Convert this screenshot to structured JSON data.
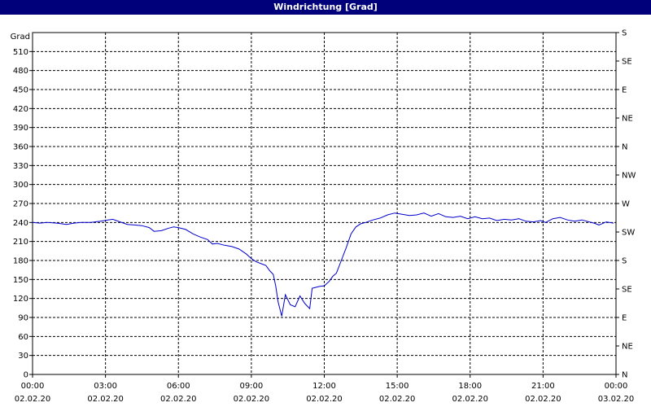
{
  "window": {
    "title": "Windrichtung [Grad]"
  },
  "chart_data": {
    "type": "line",
    "title": "Windrichtung [Grad]",
    "ylabel": "Grad",
    "xlabel": "",
    "ylim": [
      0,
      540
    ],
    "yticks": [
      0,
      30,
      60,
      90,
      120,
      150,
      180,
      210,
      240,
      270,
      300,
      330,
      360,
      390,
      420,
      450,
      480,
      510
    ],
    "y2_labels": [
      "N",
      "NE",
      "E",
      "SE",
      "S",
      "SW",
      "W",
      "NW",
      "N",
      "NE",
      "E",
      "SE",
      "S"
    ],
    "xlim": [
      0,
      24
    ],
    "xticks": [
      {
        "time": "00:00",
        "date": "02.02.20"
      },
      {
        "time": "03:00",
        "date": "02.02.20"
      },
      {
        "time": "06:00",
        "date": "02.02.20"
      },
      {
        "time": "09:00",
        "date": "02.02.20"
      },
      {
        "time": "12:00",
        "date": "02.02.20"
      },
      {
        "time": "15:00",
        "date": "02.02.20"
      },
      {
        "time": "18:00",
        "date": "02.02.20"
      },
      {
        "time": "21:00",
        "date": "02.02.20"
      },
      {
        "time": "00:00",
        "date": "03.02.20"
      }
    ],
    "grid": true,
    "line_color": "#0000cc",
    "series": [
      {
        "name": "",
        "x": [
          0,
          0.3,
          0.6,
          1.0,
          1.4,
          1.7,
          2.0,
          2.4,
          2.8,
          3.1,
          3.3,
          3.6,
          3.9,
          4.2,
          4.5,
          4.8,
          5.0,
          5.3,
          5.6,
          5.8,
          6.0,
          6.3,
          6.6,
          6.9,
          7.2,
          7.4,
          7.6,
          7.9,
          8.2,
          8.5,
          8.8,
          9.0,
          9.2,
          9.4,
          9.6,
          9.75,
          9.9,
          10.0,
          10.1,
          10.25,
          10.4,
          10.6,
          10.8,
          11.0,
          11.2,
          11.4,
          11.5,
          11.6,
          11.8,
          12.0,
          12.2,
          12.35,
          12.5,
          12.7,
          12.9,
          13.1,
          13.3,
          13.5,
          13.7,
          14.0,
          14.3,
          14.6,
          14.9,
          15.2,
          15.5,
          15.8,
          16.1,
          16.4,
          16.7,
          17.0,
          17.3,
          17.6,
          17.9,
          18.2,
          18.5,
          18.8,
          19.1,
          19.4,
          19.7,
          20.0,
          20.3,
          20.6,
          20.9,
          21.1,
          21.4,
          21.7,
          22.0,
          22.3,
          22.6,
          22.9,
          23.1,
          23.3,
          23.6,
          23.9
        ],
        "values": [
          240,
          239,
          240,
          239,
          237,
          239,
          240,
          240,
          242,
          244,
          245,
          241,
          237,
          236,
          235,
          232,
          226,
          227,
          231,
          233,
          232,
          229,
          222,
          217,
          213,
          206,
          207,
          204,
          202,
          198,
          190,
          183,
          178,
          175,
          172,
          164,
          158,
          140,
          115,
          92,
          126,
          110,
          107,
          124,
          112,
          104,
          136,
          137,
          139,
          140,
          147,
          155,
          160,
          180,
          200,
          222,
          233,
          238,
          240,
          244,
          247,
          252,
          255,
          253,
          251,
          252,
          255,
          250,
          254,
          249,
          248,
          250,
          246,
          249,
          246,
          247,
          243,
          245,
          244,
          246,
          242,
          241,
          243,
          240,
          246,
          248,
          244,
          242,
          244,
          241,
          239,
          236,
          241,
          239
        ]
      }
    ]
  }
}
